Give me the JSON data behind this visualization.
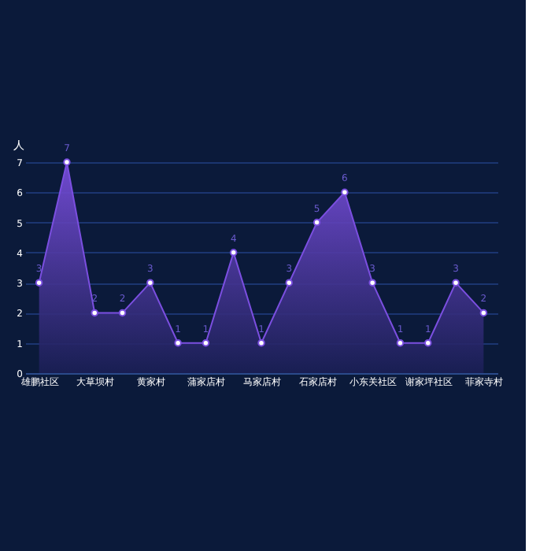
{
  "chart_data": {
    "type": "area",
    "ylabel": "人",
    "categories": [
      "雄鹏社区",
      null,
      "大草坝村",
      null,
      "黄家村",
      null,
      "蒲家店村",
      null,
      "马家店村",
      null,
      "石家店村",
      null,
      "小东关社区",
      null,
      "谢家坪社区",
      null,
      "菲家寺村"
    ],
    "series": [
      {
        "color": "#7b4fe0",
        "values": [
          3,
          7,
          2,
          2,
          3,
          1,
          1,
          4,
          1,
          3,
          5,
          6,
          3,
          1,
          1,
          3,
          2
        ]
      }
    ],
    "ylim": [
      0,
      7
    ],
    "yticks": [
      0,
      1,
      2,
      3,
      4,
      5,
      6,
      7
    ],
    "grid": "y",
    "marker": "circle",
    "data_labels": true
  }
}
